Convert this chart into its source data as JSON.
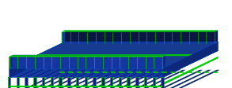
{
  "background_color": "#ffffff",
  "figsize": [
    2.93,
    1.13
  ],
  "dpi": 100,
  "deck_color": "#1a3a9c",
  "deck_top_color": "#1a3a8c",
  "highlight_color": "#00cc00",
  "edge_color": "#0044bb",
  "dark_color": "#091840",
  "side_color": "#0d2878",
  "parapet_color": "#1535a0",
  "n_bays": 18,
  "rib_color": "#0a1e7a",
  "rib_edge": "#00cc00"
}
